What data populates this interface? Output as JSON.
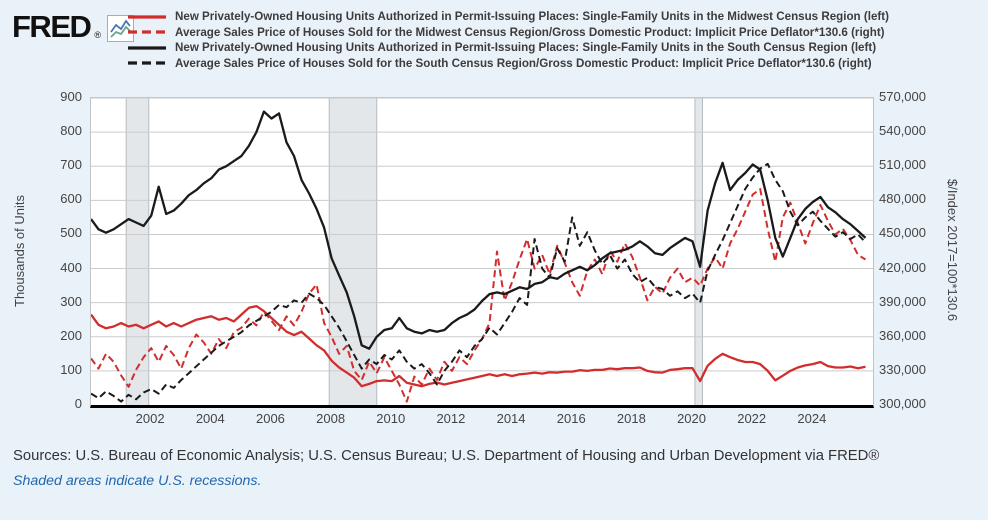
{
  "header": {
    "logo_text": "FRED",
    "logo_registered": "®"
  },
  "legend": {
    "series": [
      {
        "label": "New Privately-Owned Housing Units Authorized in Permit-Issuing Places: Single-Family Units in the Midwest Census Region (left)",
        "color": "#d22d2d",
        "dash": "solid"
      },
      {
        "label": "Average Sales Price of Houses Sold for the Midwest Census Region/Gross Domestic Product: Implicit Price Deflator*130.6 (right)",
        "color": "#d22d2d",
        "dash": "dashed"
      },
      {
        "label": "New Privately-Owned Housing Units Authorized in Permit-Issuing Places: Single-Family Units in the South Census Region (left)",
        "color": "#1a1a1a",
        "dash": "solid"
      },
      {
        "label": "Average Sales Price of Houses Sold for the South Census Region/Gross Domestic Product: Implicit Price Deflator*130.6 (right)",
        "color": "#1a1a1a",
        "dash": "dashed"
      }
    ]
  },
  "colors": {
    "red": "#d22d2d",
    "black": "#1a1a1a",
    "grid": "#cccccc",
    "recession_fill": "#e3e7ea",
    "recession_edge": "#b6bcc1",
    "background": "#eaf2f9",
    "note_blue": "#1f66ad"
  },
  "chart_data": {
    "type": "line",
    "x_axis": {
      "range": [
        2000,
        2026
      ],
      "tick_values": [
        2002,
        2004,
        2006,
        2008,
        2010,
        2012,
        2014,
        2016,
        2018,
        2020,
        2022,
        2024
      ],
      "tick_labels": [
        "2002",
        "2004",
        "2006",
        "2008",
        "2010",
        "2012",
        "2014",
        "2016",
        "2018",
        "2020",
        "2022",
        "2024"
      ]
    },
    "left_axis": {
      "title": "Thousands of Units",
      "range": [
        0,
        900
      ],
      "tick_values": [
        0,
        100,
        200,
        300,
        400,
        500,
        600,
        700,
        800,
        900
      ],
      "tick_labels": [
        "0",
        "100",
        "200",
        "300",
        "400",
        "500",
        "600",
        "700",
        "800",
        "900"
      ]
    },
    "right_axis": {
      "title": "$/Index 2017=100*130.6",
      "range": [
        300000,
        570000
      ],
      "tick_values": [
        300000,
        330000,
        360000,
        390000,
        420000,
        450000,
        480000,
        510000,
        540000,
        570000
      ],
      "tick_labels": [
        "300,000",
        "330,000",
        "360,000",
        "390,000",
        "420,000",
        "450,000",
        "480,000",
        "510,000",
        "540,000",
        "570,000"
      ]
    },
    "recessions": [
      {
        "start": 2001.17,
        "end": 2001.92
      },
      {
        "start": 2007.92,
        "end": 2009.5
      },
      {
        "start": 2020.08,
        "end": 2020.33
      }
    ],
    "x": [
      2000,
      2000.25,
      2000.5,
      2000.75,
      2001,
      2001.25,
      2001.5,
      2001.75,
      2002,
      2002.25,
      2002.5,
      2002.75,
      2003,
      2003.25,
      2003.5,
      2003.75,
      2004,
      2004.25,
      2004.5,
      2004.75,
      2005,
      2005.25,
      2005.5,
      2005.75,
      2006,
      2006.25,
      2006.5,
      2006.75,
      2007,
      2007.25,
      2007.5,
      2007.75,
      2008,
      2008.25,
      2008.5,
      2008.75,
      2009,
      2009.25,
      2009.5,
      2009.75,
      2010,
      2010.25,
      2010.5,
      2010.75,
      2011,
      2011.25,
      2011.5,
      2011.75,
      2012,
      2012.25,
      2012.5,
      2012.75,
      2013,
      2013.25,
      2013.5,
      2013.75,
      2014,
      2014.25,
      2014.5,
      2014.75,
      2015,
      2015.25,
      2015.5,
      2015.75,
      2016,
      2016.25,
      2016.5,
      2016.75,
      2017,
      2017.25,
      2017.5,
      2017.75,
      2018,
      2018.25,
      2018.5,
      2018.75,
      2019,
      2019.25,
      2019.5,
      2019.75,
      2020,
      2020.25,
      2020.5,
      2020.75,
      2021,
      2021.25,
      2021.5,
      2021.75,
      2022,
      2022.25,
      2022.5,
      2022.75,
      2023,
      2023.25,
      2023.5,
      2023.75,
      2024,
      2024.25,
      2024.5,
      2024.75,
      2025,
      2025.25,
      2025.5,
      2025.75
    ],
    "series": [
      {
        "name": "midwest-single-family-permits",
        "label": "New Privately-Owned Housing Units Authorized in Permit-Issuing Places: Single-Family Units in the Midwest Census Region (left)",
        "axis": "left",
        "color": "#d22d2d",
        "dash": "solid",
        "values": [
          265,
          235,
          225,
          230,
          240,
          230,
          235,
          225,
          235,
          245,
          230,
          240,
          230,
          240,
          250,
          255,
          260,
          250,
          255,
          245,
          265,
          285,
          290,
          275,
          255,
          235,
          215,
          205,
          215,
          195,
          175,
          160,
          130,
          110,
          95,
          80,
          55,
          62,
          70,
          72,
          70,
          85,
          65,
          60,
          55,
          62,
          66,
          60,
          65,
          70,
          75,
          80,
          85,
          90,
          85,
          90,
          85,
          90,
          92,
          95,
          92,
          96,
          95,
          98,
          98,
          102,
          100,
          103,
          103,
          107,
          105,
          108,
          108,
          110,
          100,
          96,
          95,
          103,
          105,
          108,
          108,
          70,
          115,
          135,
          150,
          140,
          132,
          126,
          126,
          120,
          100,
          72,
          86,
          100,
          110,
          116,
          120,
          126,
          114,
          110,
          110,
          113,
          108,
          112
        ]
      },
      {
        "name": "midwest-avg-sales-price-deflated",
        "label": "Average Sales Price of Houses Sold for the Midwest Census Region/Gross Domestic Product: Implicit Price Deflator*130.6 (right)",
        "axis": "right",
        "color": "#d22d2d",
        "dash": "dashed",
        "values": [
          341000,
          332000,
          345000,
          338000,
          326000,
          316000,
          331000,
          342000,
          350000,
          338000,
          352000,
          344000,
          332000,
          350000,
          362000,
          355000,
          345000,
          358000,
          350000,
          364000,
          368000,
          376000,
          370000,
          382000,
          374000,
          366000,
          378000,
          370000,
          382000,
          398000,
          406000,
          372000,
          360000,
          345000,
          352000,
          330000,
          322000,
          338000,
          328000,
          342000,
          330000,
          318000,
          303000,
          325000,
          318000,
          332000,
          322000,
          338000,
          330000,
          342000,
          336000,
          348000,
          358000,
          372000,
          435000,
          392000,
          408000,
          428000,
          446000,
          420000,
          432000,
          415000,
          440000,
          425000,
          408000,
          396000,
          418000,
          428000,
          415000,
          436000,
          426000,
          442000,
          430000,
          412000,
          392000,
          404000,
          398000,
          412000,
          420000,
          408000,
          412000,
          405000,
          420000,
          430000,
          420000,
          442000,
          455000,
          470000,
          485000,
          490000,
          455000,
          426000,
          465000,
          478000,
          460000,
          442000,
          460000,
          476000,
          462000,
          450000,
          455000,
          445000,
          432000,
          428000
        ]
      },
      {
        "name": "south-single-family-permits",
        "label": "New Privately-Owned Housing Units Authorized in Permit-Issuing Places: Single-Family Units in the South Census Region (left)",
        "axis": "left",
        "color": "#1a1a1a",
        "dash": "solid",
        "values": [
          545,
          515,
          505,
          515,
          530,
          545,
          535,
          525,
          555,
          640,
          560,
          570,
          590,
          615,
          630,
          650,
          665,
          690,
          700,
          715,
          730,
          760,
          800,
          860,
          840,
          855,
          770,
          730,
          660,
          620,
          575,
          520,
          430,
          380,
          330,
          260,
          175,
          165,
          200,
          220,
          225,
          255,
          225,
          215,
          210,
          220,
          215,
          220,
          240,
          255,
          265,
          280,
          305,
          325,
          330,
          325,
          335,
          345,
          340,
          355,
          360,
          375,
          370,
          385,
          395,
          405,
          395,
          410,
          430,
          445,
          450,
          455,
          465,
          480,
          465,
          445,
          440,
          460,
          475,
          490,
          480,
          405,
          570,
          650,
          710,
          630,
          660,
          680,
          705,
          690,
          600,
          490,
          435,
          490,
          545,
          575,
          595,
          610,
          580,
          565,
          545,
          530,
          510,
          490
        ]
      },
      {
        "name": "south-avg-sales-price-deflated",
        "label": "Average Sales Price of Houses Sold for the South Census Region/Gross Domestic Product: Implicit Price Deflator*130.6 (right)",
        "axis": "right",
        "color": "#1a1a1a",
        "dash": "dashed",
        "values": [
          310000,
          306000,
          312000,
          308000,
          303000,
          309000,
          305000,
          311000,
          314000,
          310000,
          318000,
          315000,
          322000,
          328000,
          334000,
          340000,
          346000,
          352000,
          356000,
          360000,
          364000,
          370000,
          374000,
          378000,
          382000,
          388000,
          386000,
          392000,
          390000,
          398000,
          394000,
          388000,
          378000,
          368000,
          356000,
          344000,
          332000,
          340000,
          336000,
          344000,
          340000,
          348000,
          338000,
          332000,
          336000,
          328000,
          318000,
          330000,
          338000,
          348000,
          342000,
          352000,
          358000,
          368000,
          362000,
          372000,
          382000,
          394000,
          388000,
          446000,
          420000,
          412000,
          438000,
          426000,
          465000,
          440000,
          452000,
          436000,
          424000,
          432000,
          420000,
          428000,
          415000,
          408000,
          412000,
          404000,
          402000,
          396000,
          400000,
          394000,
          398000,
          390000,
          418000,
          432000,
          445000,
          460000,
          475000,
          490000,
          500000,
          508000,
          512000,
          498000,
          488000,
          470000,
          458000,
          465000,
          470000,
          462000,
          455000,
          448000,
          452000,
          446000,
          450000,
          443000
        ]
      }
    ]
  },
  "footer": {
    "sources": "Sources: U.S. Bureau of Economic Analysis; U.S. Census Bureau; U.S. Department of Housing and Urban Development via FRED®",
    "recession_note": "Shaded areas indicate U.S. recessions."
  }
}
